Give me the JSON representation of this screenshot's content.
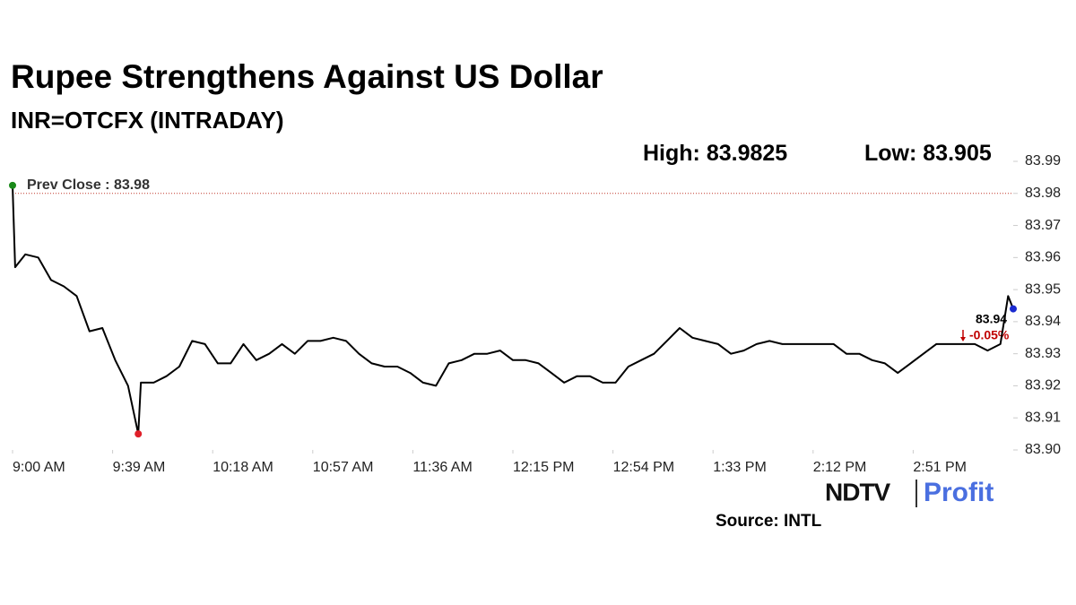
{
  "chart_data": {
    "type": "line",
    "title": "Rupee Strengthens Against US Dollar",
    "subtitle": "INR=OTCFX (INTRADAY)",
    "high_label": "High:",
    "high": 83.9825,
    "low_label": "Low:",
    "low": 83.905,
    "prev_close_label": "Prev Close :",
    "prev_close": 83.98,
    "prev_close_color": "#c0392b",
    "last_price": 83.94,
    "change": {
      "value": -0.05,
      "label": "-0.05%"
    },
    "change_color": "#c00000",
    "color": "#000000",
    "start_marker_color": "#1a8a1a",
    "low_marker_color": "#e0202a",
    "end_marker_color": "#1a2ad0",
    "x": [
      0,
      1,
      5,
      10,
      15,
      20,
      25,
      30,
      35,
      40,
      45,
      49,
      50,
      55,
      60,
      65,
      70,
      75,
      80,
      85,
      90,
      95,
      100,
      105,
      110,
      115,
      120,
      125,
      130,
      135,
      140,
      145,
      150,
      155,
      160,
      165,
      170,
      175,
      180,
      185,
      190,
      195,
      200,
      205,
      210,
      215,
      220,
      225,
      230,
      235,
      240,
      245,
      250,
      255,
      260,
      265,
      270,
      275,
      280,
      285,
      290,
      295,
      300,
      305,
      310,
      315,
      320,
      325,
      330,
      335,
      340,
      345,
      350,
      355,
      360,
      365,
      370,
      375,
      380,
      385,
      388,
      390
    ],
    "values": [
      83.9825,
      83.957,
      83.961,
      83.96,
      83.953,
      83.951,
      83.948,
      83.937,
      83.938,
      83.928,
      83.92,
      83.905,
      83.921,
      83.921,
      83.923,
      83.926,
      83.934,
      83.933,
      83.927,
      83.927,
      83.933,
      83.928,
      83.93,
      83.933,
      83.93,
      83.934,
      83.934,
      83.935,
      83.934,
      83.93,
      83.927,
      83.926,
      83.926,
      83.924,
      83.921,
      83.92,
      83.927,
      83.928,
      83.93,
      83.93,
      83.931,
      83.928,
      83.928,
      83.927,
      83.924,
      83.921,
      83.923,
      83.923,
      83.921,
      83.921,
      83.926,
      83.928,
      83.93,
      83.934,
      83.938,
      83.935,
      83.934,
      83.933,
      83.93,
      83.931,
      83.933,
      83.934,
      83.933,
      83.933,
      83.933,
      83.933,
      83.933,
      83.93,
      83.93,
      83.928,
      83.927,
      83.924,
      83.927,
      83.93,
      83.933,
      83.933,
      83.933,
      83.933,
      83.931,
      83.933,
      83.948,
      83.944
    ],
    "xlim": [
      0,
      390
    ],
    "xticks": [
      {
        "value": 0,
        "label": "9:00 AM"
      },
      {
        "value": 39,
        "label": "9:39 AM"
      },
      {
        "value": 78,
        "label": "10:18 AM"
      },
      {
        "value": 117,
        "label": "10:57 AM"
      },
      {
        "value": 156,
        "label": "11:36 AM"
      },
      {
        "value": 195,
        "label": "12:15 PM"
      },
      {
        "value": 234,
        "label": "12:54 PM"
      },
      {
        "value": 273,
        "label": "1:33 PM"
      },
      {
        "value": 312,
        "label": "2:12 PM"
      },
      {
        "value": 351,
        "label": "2:51 PM"
      }
    ],
    "ylim": [
      83.9,
      83.99
    ],
    "yticks": [
      {
        "value": 83.9,
        "label": "83.90"
      },
      83.91,
      83.92,
      83.93,
      83.94,
      83.95,
      83.96,
      83.97,
      83.98,
      83.99
    ],
    "grid": false,
    "logo_left": "NDTV",
    "logo_right": "Profit",
    "source": "Source: INTL"
  }
}
